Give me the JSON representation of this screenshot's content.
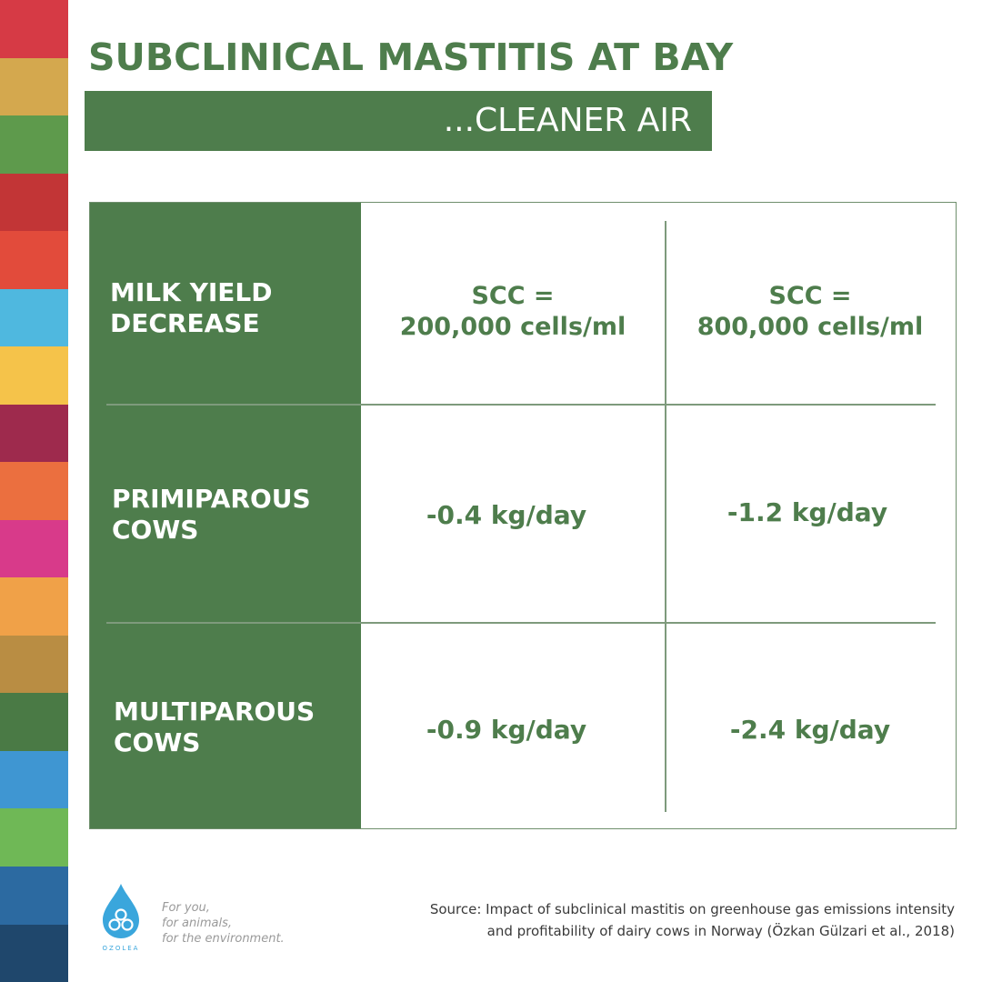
{
  "colors": {
    "primary_green": "#4e7d4c",
    "white": "#ffffff",
    "stripes": [
      "#d63a45",
      "#d4a84e",
      "#5e9a4c",
      "#c23536",
      "#e24b3b",
      "#4fb8df",
      "#f5c34a",
      "#9e2a4d",
      "#eb6f3f",
      "#d83a8a",
      "#f0a148",
      "#b98d43",
      "#4a7a45",
      "#3f96d2",
      "#6fb856",
      "#2c6aa1",
      "#1f476c"
    ]
  },
  "header": {
    "title": "SUBCLINICAL MASTITIS AT BAY",
    "subtitle": "...CLEANER AIR"
  },
  "table": {
    "corner_label": [
      "MILK YIELD",
      "DECREASE"
    ],
    "columns": [
      [
        "SCC =",
        "200,000 cells/ml"
      ],
      [
        "SCC =",
        "800,000 cells/ml"
      ]
    ],
    "rows": [
      {
        "label": [
          "PRIMIPAROUS",
          "COWS"
        ],
        "values": [
          "-0.4 kg/day",
          "-1.2 kg/day"
        ]
      },
      {
        "label": [
          "MULTIPAROUS",
          "COWS"
        ],
        "values": [
          "-0.9 kg/day",
          "-2.4 kg/day"
        ]
      }
    ]
  },
  "footer": {
    "logo_icon": "ozolea-drop-icon",
    "logo_text": "OZOLEA",
    "tagline": [
      "For you,",
      "for animals,",
      "for the environment."
    ],
    "source": [
      "Source: Impact of subclinical mastitis on greenhouse gas emissions intensity",
      "and profitability of dairy cows in Norway (Özkan Gülzari et al., 2018)"
    ]
  }
}
